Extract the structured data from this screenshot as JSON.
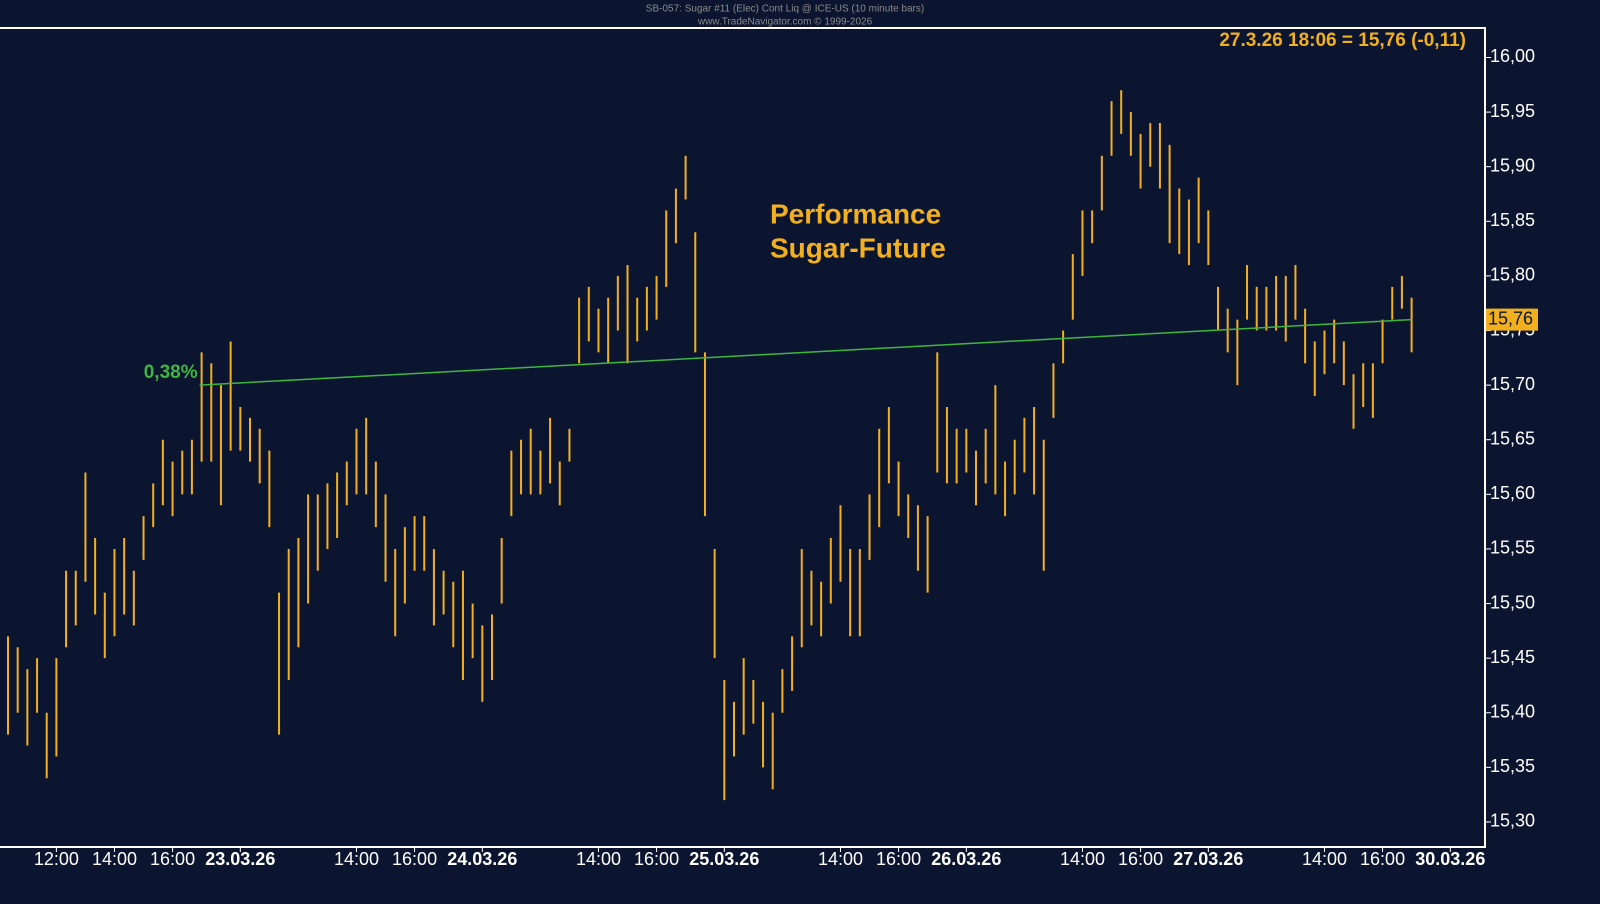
{
  "chart_data": {
    "type": "range",
    "title": "SB-057:  Sugar #11 (Elec) Cont Liq @ ICE-US  (10 minute bars)",
    "subtitle": "www.TradeNavigator.com © 1999-2026",
    "info": "27.3.26 18:06 = 15,76 (-0,11)",
    "annotation": [
      "Performance",
      "Sugar-Future"
    ],
    "color": "#f2b01e",
    "categories": [
      null,
      null,
      null,
      null,
      null,
      "12:00",
      null,
      null,
      null,
      null,
      null,
      "14:00",
      null,
      null,
      null,
      null,
      null,
      "16:00",
      null,
      null,
      null,
      null,
      null,
      null,
      "23.03.26",
      null,
      null,
      null,
      null,
      null,
      null,
      null,
      null,
      null,
      null,
      null,
      "14:00",
      null,
      null,
      null,
      null,
      null,
      "16:00",
      null,
      null,
      null,
      null,
      null,
      null,
      "24.03.26",
      null,
      null,
      null,
      null,
      null,
      null,
      null,
      null,
      null,
      null,
      null,
      "14:00",
      null,
      null,
      null,
      null,
      null,
      "16:00",
      null,
      null,
      null,
      null,
      null,
      null,
      "25.03.26",
      null,
      null,
      null,
      null,
      null,
      null,
      null,
      null,
      null,
      null,
      null,
      "14:00",
      null,
      null,
      null,
      null,
      null,
      "16:00",
      null,
      null,
      null,
      null,
      null,
      null,
      "26.03.26",
      null,
      null,
      null,
      null,
      null,
      null,
      null,
      null,
      null,
      null,
      null,
      "14:00",
      null,
      null,
      null,
      null,
      null,
      "16:00",
      null,
      null,
      null,
      null,
      null,
      null,
      "27.03.26",
      null,
      null,
      null,
      null,
      null,
      null,
      null,
      null,
      null,
      null,
      null,
      "14:00",
      null,
      null,
      null,
      null,
      null,
      "16:00",
      null,
      null,
      null,
      null,
      null,
      null,
      "30.03.26"
    ],
    "high": [
      15.47,
      15.46,
      15.44,
      15.45,
      15.4,
      15.45,
      15.53,
      15.53,
      15.62,
      15.56,
      15.51,
      15.55,
      15.56,
      15.53,
      15.58,
      15.61,
      15.65,
      15.63,
      15.64,
      15.65,
      15.73,
      15.72,
      15.7,
      15.74,
      15.68,
      15.67,
      15.66,
      15.64,
      15.51,
      15.55,
      15.56,
      15.6,
      15.6,
      15.61,
      15.62,
      15.63,
      15.66,
      15.67,
      15.63,
      15.6,
      15.55,
      15.57,
      15.58,
      15.58,
      15.55,
      15.53,
      15.52,
      15.53,
      15.5,
      15.48,
      15.49,
      15.56,
      15.64,
      15.65,
      15.66,
      15.64,
      15.67,
      15.63,
      15.66,
      15.78,
      15.79,
      15.77,
      15.78,
      15.8,
      15.81,
      15.78,
      15.79,
      15.8,
      15.86,
      15.88,
      15.91,
      15.84,
      15.73,
      15.55,
      15.43,
      15.41,
      15.45,
      15.43,
      15.41,
      15.4,
      15.44,
      15.47,
      15.55,
      15.53,
      15.52,
      15.56,
      15.59,
      15.55,
      15.55,
      15.6,
      15.66,
      15.68,
      15.63,
      15.6,
      15.59,
      15.58,
      15.73,
      15.68,
      15.66,
      15.66,
      15.64,
      15.66,
      15.7,
      15.63,
      15.65,
      15.67,
      15.68,
      15.65,
      15.72,
      15.75,
      15.82,
      15.86,
      15.86,
      15.91,
      15.96,
      15.97,
      15.95,
      15.93,
      15.94,
      15.94,
      15.92,
      15.88,
      15.87,
      15.89,
      15.86,
      15.79,
      15.77,
      15.76,
      15.81,
      15.79,
      15.79,
      15.8,
      15.8,
      15.81,
      15.77,
      15.74,
      15.75,
      15.76,
      15.74,
      15.71,
      15.72,
      15.72,
      15.76,
      15.79,
      15.8,
      15.78,
      null,
      null,
      null,
      null
    ],
    "low": [
      15.38,
      15.4,
      15.37,
      15.4,
      15.34,
      15.36,
      15.46,
      15.48,
      15.52,
      15.49,
      15.45,
      15.47,
      15.49,
      15.48,
      15.54,
      15.57,
      15.59,
      15.58,
      15.6,
      15.6,
      15.63,
      15.63,
      15.59,
      15.64,
      15.64,
      15.63,
      15.61,
      15.57,
      15.38,
      15.43,
      15.46,
      15.5,
      15.53,
      15.55,
      15.56,
      15.59,
      15.6,
      15.6,
      15.57,
      15.52,
      15.47,
      15.5,
      15.53,
      15.53,
      15.48,
      15.49,
      15.46,
      15.43,
      15.45,
      15.41,
      15.43,
      15.5,
      15.58,
      15.6,
      15.6,
      15.6,
      15.61,
      15.59,
      15.63,
      15.72,
      15.74,
      15.73,
      15.72,
      15.75,
      15.72,
      15.74,
      15.75,
      15.76,
      15.79,
      15.83,
      15.87,
      15.73,
      15.58,
      15.45,
      15.32,
      15.36,
      15.38,
      15.39,
      15.35,
      15.33,
      15.4,
      15.42,
      15.46,
      15.48,
      15.47,
      15.5,
      15.52,
      15.47,
      15.47,
      15.54,
      15.57,
      15.61,
      15.58,
      15.56,
      15.53,
      15.51,
      15.62,
      15.61,
      15.61,
      15.62,
      15.59,
      15.61,
      15.6,
      15.58,
      15.6,
      15.62,
      15.6,
      15.53,
      15.67,
      15.72,
      15.76,
      15.8,
      15.83,
      15.86,
      15.91,
      15.93,
      15.91,
      15.88,
      15.9,
      15.88,
      15.83,
      15.82,
      15.81,
      15.83,
      15.81,
      15.75,
      15.73,
      15.7,
      15.76,
      15.75,
      15.75,
      15.75,
      15.74,
      15.76,
      15.72,
      15.69,
      15.71,
      15.72,
      15.7,
      15.66,
      15.68,
      15.67,
      15.72,
      15.76,
      15.77,
      15.73,
      null,
      null,
      null,
      null
    ],
    "trend": {
      "label": "0,38%",
      "start": 15.7,
      "end": 15.76,
      "color": "#3fb63f"
    },
    "last_price": {
      "value": 15.76,
      "label": "15,76"
    },
    "ylim": [
      15.278,
      16.027
    ],
    "yticks": [
      {
        "value": 15.3,
        "label": "15,30"
      },
      {
        "value": 15.35,
        "label": "15,35"
      },
      {
        "value": 15.4,
        "label": "15,40"
      },
      {
        "value": 15.45,
        "label": "15,45"
      },
      {
        "value": 15.5,
        "label": "15,50"
      },
      {
        "value": 15.55,
        "label": "15,55"
      },
      {
        "value": 15.6,
        "label": "15,60"
      },
      {
        "value": 15.65,
        "label": "15,65"
      },
      {
        "value": 15.7,
        "label": "15,70"
      },
      {
        "value": 15.75,
        "label": "15,75"
      },
      {
        "value": 15.8,
        "label": "15,80"
      },
      {
        "value": 15.85,
        "label": "15,85"
      },
      {
        "value": 15.9,
        "label": "15,90"
      },
      {
        "value": 15.95,
        "label": "15,95"
      },
      {
        "value": 16.0,
        "label": "16,00"
      }
    ]
  }
}
